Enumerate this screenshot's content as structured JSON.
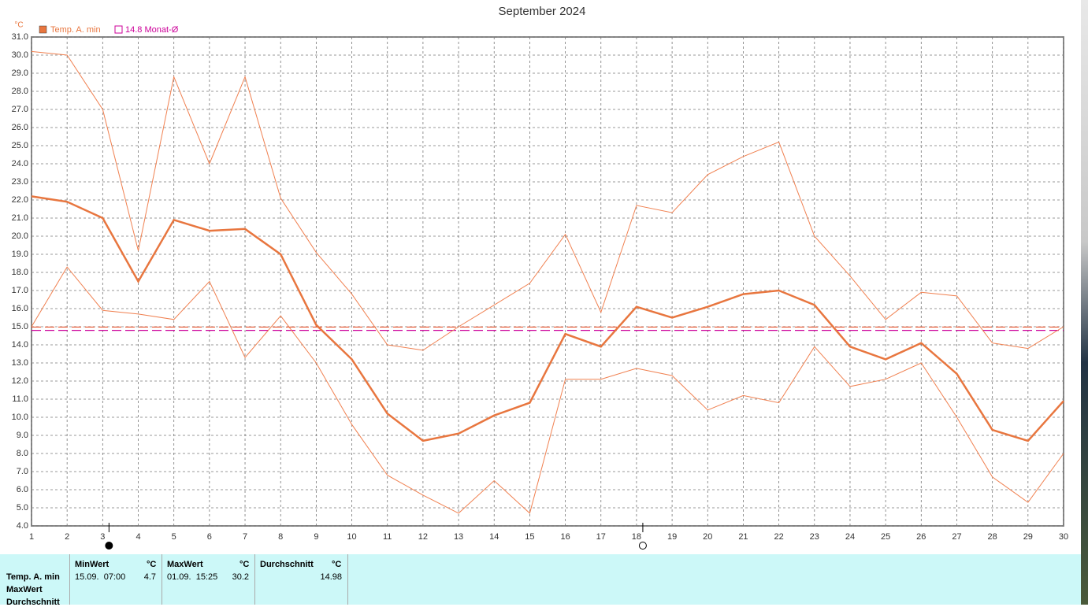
{
  "chart_data": {
    "type": "line",
    "title": "September 2024",
    "y_unit": "°C",
    "x": [
      1,
      2,
      3,
      4,
      5,
      6,
      7,
      8,
      9,
      10,
      11,
      12,
      13,
      14,
      15,
      16,
      17,
      18,
      19,
      20,
      21,
      22,
      23,
      24,
      25,
      26,
      27,
      28,
      29,
      30
    ],
    "series": [
      {
        "name": "Temp. A. min",
        "color": "#e8763f",
        "width": 2.5,
        "values": [
          22.2,
          21.9,
          21.0,
          17.5,
          20.9,
          20.3,
          20.4,
          19.0,
          15.1,
          13.2,
          10.2,
          8.7,
          9.1,
          10.1,
          10.8,
          14.6,
          13.9,
          16.1,
          15.5,
          16.1,
          16.8,
          17.0,
          16.2,
          13.9,
          13.2,
          14.1,
          12.4,
          9.3,
          8.7,
          10.9
        ]
      },
      {
        "color": "#f08050",
        "width": 1,
        "values": [
          30.2,
          30.0,
          27.0,
          19.2,
          28.8,
          24.0,
          28.8,
          22.1,
          19.1,
          16.8,
          14.0,
          13.7,
          15.0,
          16.2,
          17.4,
          20.1,
          15.8,
          21.7,
          21.3,
          23.4,
          24.4,
          25.2,
          20.0,
          17.8,
          15.4,
          16.9,
          16.7,
          14.1,
          13.8,
          15.0
        ]
      },
      {
        "color": "#f08050",
        "width": 1,
        "values": [
          15.0,
          18.3,
          15.9,
          15.7,
          15.4,
          17.5,
          13.3,
          15.6,
          13.0,
          9.6,
          6.8,
          5.7,
          4.7,
          6.5,
          4.7,
          12.1,
          12.1,
          12.7,
          12.3,
          10.4,
          11.2,
          10.8,
          13.9,
          11.7,
          12.1,
          13.0,
          10.0,
          6.7,
          5.3,
          8.0
        ]
      }
    ],
    "ref_lines": [
      {
        "value": 14.98,
        "color": "#e8502a"
      },
      {
        "value": 14.8,
        "label": "14.8 Monat-Ø",
        "color": "#cc0099"
      }
    ],
    "moon_phases": [
      {
        "x": 3,
        "phase": "full"
      },
      {
        "x": 18,
        "phase": "new"
      }
    ],
    "xlim": [
      1,
      30
    ],
    "xticks": [
      1,
      2,
      3,
      4,
      5,
      6,
      7,
      8,
      9,
      10,
      11,
      12,
      13,
      14,
      15,
      16,
      17,
      18,
      19,
      20,
      21,
      22,
      23,
      24,
      25,
      26,
      27,
      28,
      29,
      30
    ],
    "ylim": [
      4,
      31
    ],
    "yticks": [
      {
        "value": 4,
        "label": "4.0"
      },
      {
        "value": 5,
        "label": "5.0"
      },
      {
        "value": 6,
        "label": "6.0"
      },
      {
        "value": 7,
        "label": "7.0"
      },
      {
        "value": 8,
        "label": "8.0"
      },
      {
        "value": 9,
        "label": "9.0"
      },
      {
        "value": 10,
        "label": "10.0"
      },
      {
        "value": 11,
        "label": "11.0"
      },
      {
        "value": 12,
        "label": "12.0"
      },
      {
        "value": 13,
        "label": "13.0"
      },
      {
        "value": 14,
        "label": "14.0"
      },
      {
        "value": 15,
        "label": "15.0"
      },
      {
        "value": 16,
        "label": "16.0"
      },
      {
        "value": 17,
        "label": "17.0"
      },
      {
        "value": 18,
        "label": "18.0"
      },
      {
        "value": 19,
        "label": "19.0"
      },
      {
        "value": 20,
        "label": "20.0"
      },
      {
        "value": 21,
        "label": "21.0"
      },
      {
        "value": 22,
        "label": "22.0"
      },
      {
        "value": 23,
        "label": "23.0"
      },
      {
        "value": 24,
        "label": "24.0"
      },
      {
        "value": 25,
        "label": "25.0"
      },
      {
        "value": 26,
        "label": "26.0"
      },
      {
        "value": 27,
        "label": "27.0"
      },
      {
        "value": 28,
        "label": "28.0"
      },
      {
        "value": 29,
        "label": "29.0"
      },
      {
        "value": 30,
        "label": "30.0"
      },
      {
        "value": 31,
        "label": "31.0"
      }
    ],
    "grid": true
  },
  "table": {
    "header": [
      "MinWert",
      "°C",
      "MaxWert",
      "°C",
      "Durchschnitt",
      "°C"
    ],
    "rows": [
      [
        "Temp. A. min",
        "15.09.  07:00",
        "4.7",
        "01.09.  15:25",
        "30.2",
        "14.98"
      ],
      [
        "MaxWert"
      ],
      [
        "Durchschnitt"
      ]
    ]
  }
}
